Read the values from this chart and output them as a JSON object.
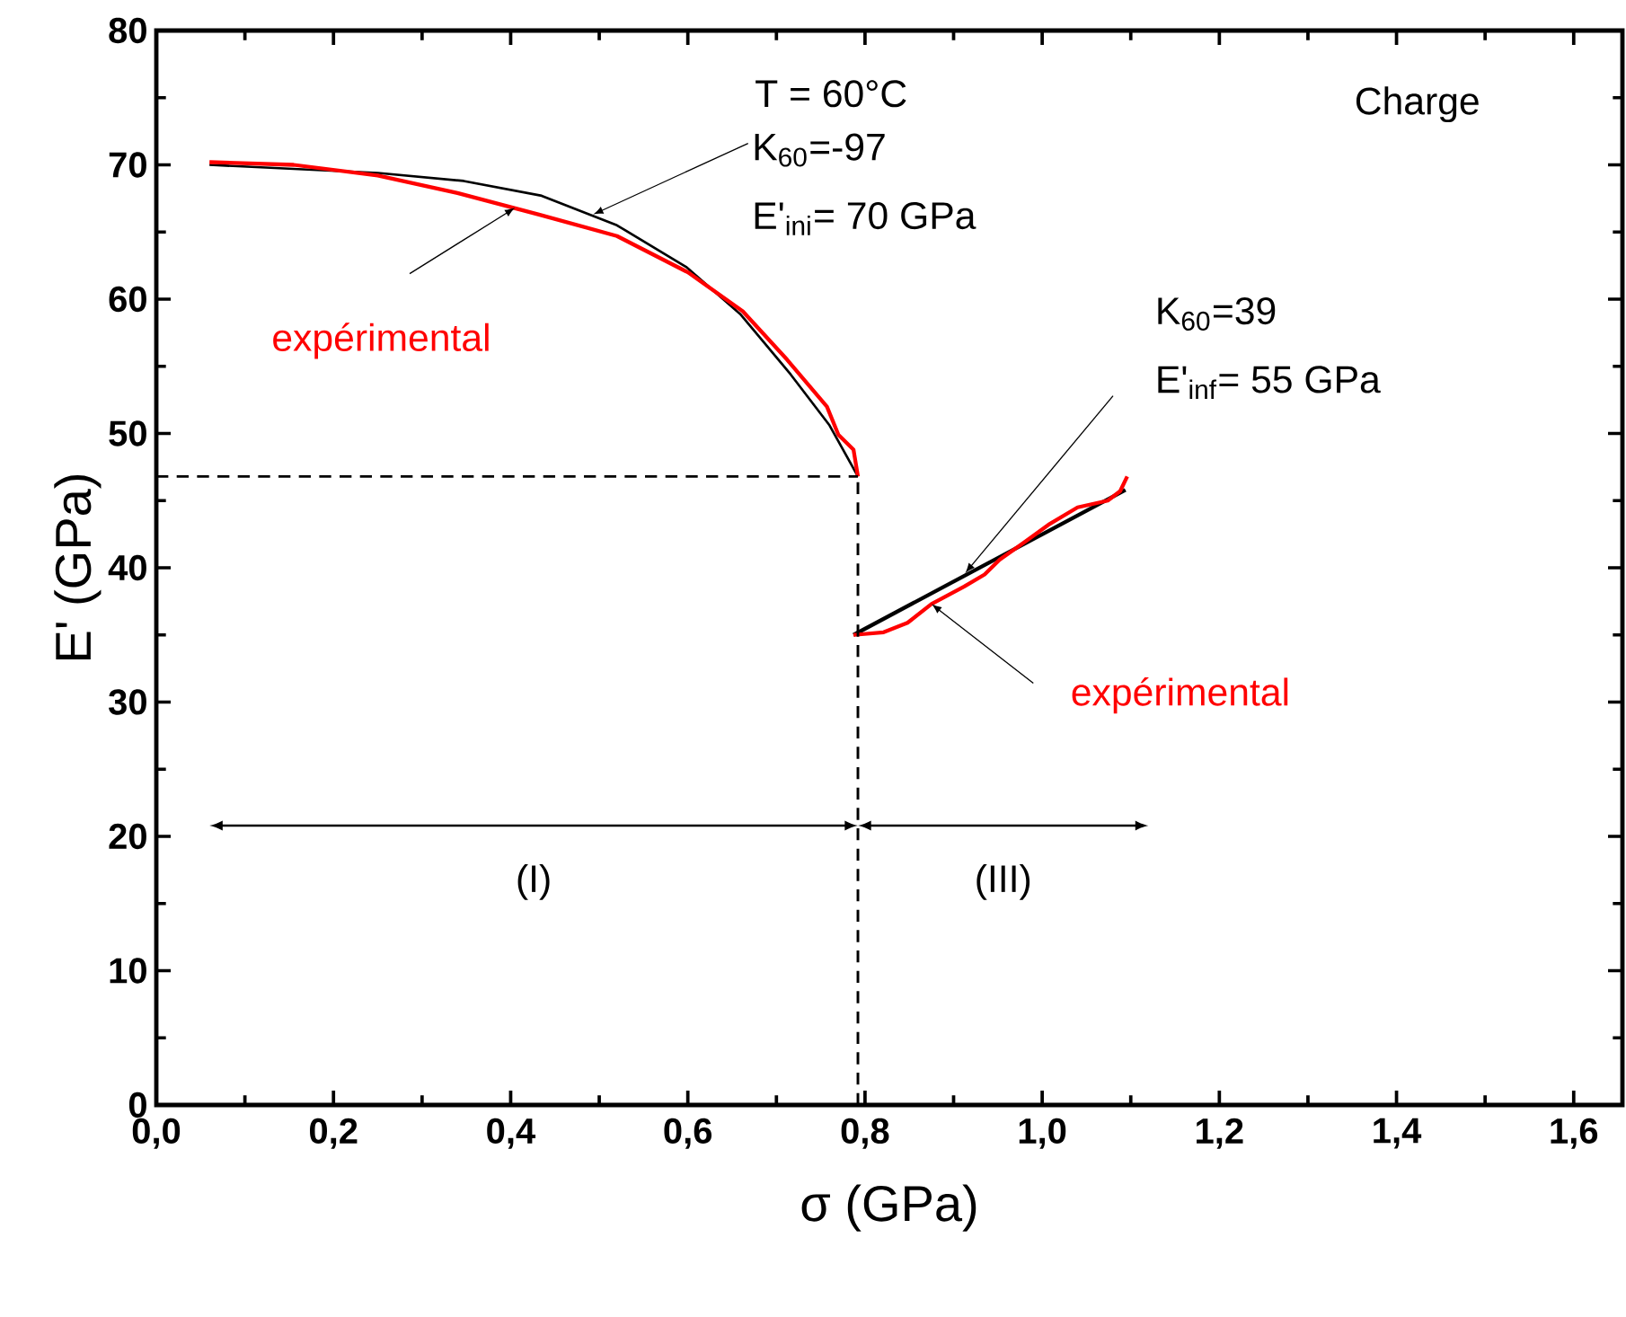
{
  "chart_data": {
    "type": "line",
    "xlabel": "σ (GPa)",
    "ylabel": "E' (GPa)",
    "xlim": [
      0,
      1.655
    ],
    "ylim": [
      0,
      80
    ],
    "xticks": [
      {
        "value": 0,
        "label": "0,0"
      },
      {
        "value": 0.2,
        "label": "0,2"
      },
      {
        "value": 0.4,
        "label": "0,4"
      },
      {
        "value": 0.6,
        "label": "0,6"
      },
      {
        "value": 0.8,
        "label": "0,8"
      },
      {
        "value": 1.0,
        "label": "1,0"
      },
      {
        "value": 1.2,
        "label": "1,2"
      },
      {
        "value": 1.4,
        "label": "1,4"
      },
      {
        "value": 1.6,
        "label": "1,6"
      }
    ],
    "yticks": [
      0,
      10,
      20,
      30,
      40,
      50,
      60,
      70,
      80
    ],
    "grid": false,
    "marker": "none",
    "line_style": "solid",
    "series": [
      {
        "color": "#000000",
        "x": [
          0.06,
          0.25,
          0.347,
          0.435,
          0.52,
          0.598,
          0.659,
          0.716,
          0.76,
          0.792
        ],
        "values": [
          70.0,
          69.4,
          68.8,
          67.7,
          65.5,
          62.4,
          58.9,
          54.4,
          50.6,
          46.8
        ]
      },
      {
        "color": "#ff0000",
        "x": [
          0.06,
          0.155,
          0.25,
          0.34,
          0.432,
          0.52,
          0.6,
          0.662,
          0.712,
          0.757,
          0.77,
          0.787,
          0.792
        ],
        "values": [
          70.2,
          70.0,
          69.2,
          67.9,
          66.3,
          64.7,
          62.0,
          59.1,
          55.5,
          52.0,
          49.9,
          48.8,
          46.8
        ]
      },
      {
        "color": "#000000",
        "x": [
          0.787,
          1.094
        ],
        "values": [
          35.0,
          45.8
        ]
      },
      {
        "color": "#ff0000",
        "x": [
          0.787,
          0.821,
          0.848,
          0.875,
          0.912,
          0.935,
          0.952,
          0.98,
          1.007,
          1.04,
          1.074,
          1.088,
          1.096
        ],
        "values": [
          35.0,
          35.2,
          35.9,
          37.3,
          38.6,
          39.5,
          40.6,
          41.9,
          43.2,
          44.5,
          45.0,
          45.7,
          46.8
        ]
      },
      {
        "color": "#000000",
        "line_style": "dashed",
        "x": [
          0,
          0.792
        ],
        "values": [
          46.8,
          46.8
        ]
      },
      {
        "color": "#000000",
        "line_style": "dashed",
        "x": [
          0.792,
          0.792
        ],
        "values": [
          0,
          46.8
        ]
      }
    ],
    "annotations": [
      "T = 60°C",
      {
        "text": "K$_{60}$=-97",
        "x": 0.493,
        "y": 66.3
      },
      "E'$_{ini}$= 70 GPa",
      "K$_{60}$=39",
      {
        "text": "E'$_{inf}$= 55 GPa",
        "x": 0.913,
        "y": 39.6
      },
      "Charge",
      "(I)",
      "(III)",
      {
        "text": "expérimental",
        "x": 0.405,
        "y": 66.8
      },
      {
        "text": "expérimental",
        "x": 0.875,
        "y": 37.3
      }
    ]
  }
}
